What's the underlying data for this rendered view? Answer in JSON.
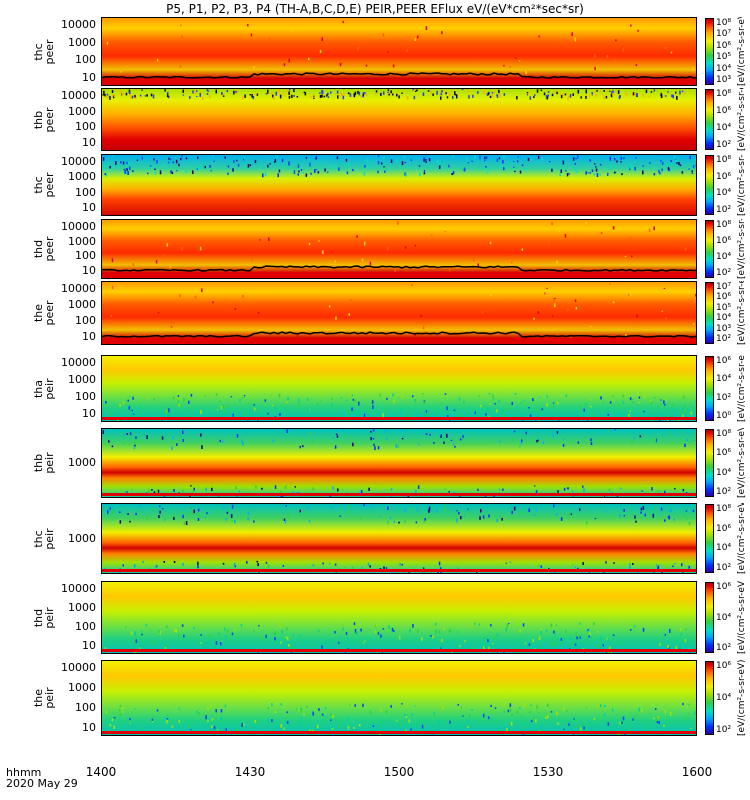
{
  "title": "P5, P1, P2, P3, P4 (TH-A,B,C,D,E) PEIR,PEER EFlux eV/(eV*cm²*sec*sr)",
  "colorbar_units": "[eV/(cm²-s-sr-eV)] (4)",
  "xaxis": {
    "label_line1": "hhmm",
    "label_line2": "2020 May 29",
    "ticks": [
      "1400",
      "1430",
      "1500",
      "1530",
      "1600"
    ]
  },
  "chart_data": {
    "type": "heatmap",
    "x": {
      "units": "hhmm",
      "range": [
        "1400",
        "1600"
      ],
      "ticks": [
        "1400",
        "1430",
        "1500",
        "1530",
        "1600"
      ]
    },
    "colormap": "rainbow",
    "panels": [
      {
        "ylabel": [
          "thc",
          "peer"
        ],
        "yscale": "log",
        "yticks": [
          "10000",
          "1000",
          "100",
          "10"
        ],
        "cticks": [
          "10⁸",
          "10⁷",
          "10⁶",
          "10⁵",
          "10⁴",
          "10³"
        ],
        "kind": "peer-hot"
      },
      {
        "ylabel": [
          "thb",
          "peer"
        ],
        "yscale": "log",
        "yticks": [
          "10000",
          "1000",
          "100",
          "10"
        ],
        "cticks": [
          "10⁸",
          "10⁶",
          "10⁴",
          "10²"
        ],
        "kind": "peer-flat"
      },
      {
        "ylabel": [
          "thc",
          "peer"
        ],
        "yscale": "log",
        "yticks": [
          "10000",
          "1000",
          "100",
          "10"
        ],
        "cticks": [
          "10⁸",
          "10⁶",
          "10⁴",
          "10²"
        ],
        "kind": "peer-noisy"
      },
      {
        "ylabel": [
          "thd",
          "peer"
        ],
        "yscale": "log",
        "yticks": [
          "10000",
          "1000",
          "100",
          "10"
        ],
        "cticks": [
          "10⁸",
          "10⁶",
          "10⁴",
          "10²"
        ],
        "kind": "peer-hot"
      },
      {
        "ylabel": [
          "the",
          "peer"
        ],
        "yscale": "log",
        "yticks": [
          "10000",
          "1000",
          "100",
          "10"
        ],
        "cticks": [
          "10⁷",
          "10⁶",
          "10⁵",
          "10⁴",
          "10³",
          "10²"
        ],
        "kind": "peer-hot"
      },
      {
        "ylabel": [
          "tha",
          "peir"
        ],
        "yscale": "log",
        "yticks": [
          "10000",
          "1000",
          "100",
          "10"
        ],
        "cticks": [
          "10⁶",
          "10⁴",
          "10²",
          "10⁰"
        ],
        "kind": "peir"
      },
      {
        "ylabel": [
          "thb",
          "peir"
        ],
        "yscale": "log",
        "yticks": [
          "1000"
        ],
        "cticks": [
          "10⁸",
          "10⁶",
          "10⁴",
          "10²"
        ],
        "kind": "peir-band"
      },
      {
        "ylabel": [
          "thc",
          "peir"
        ],
        "yscale": "log",
        "yticks": [
          "1000"
        ],
        "cticks": [
          "10⁸",
          "10⁶",
          "10⁴",
          "10²"
        ],
        "kind": "peir-band"
      },
      {
        "ylabel": [
          "thd",
          "peir"
        ],
        "yscale": "log",
        "yticks": [
          "10000",
          "1000",
          "100",
          "10"
        ],
        "cticks": [
          "10⁶",
          "10⁴",
          "10²"
        ],
        "kind": "peir"
      },
      {
        "ylabel": [
          "the",
          "peir"
        ],
        "yscale": "log",
        "yticks": [
          "10000",
          "1000",
          "100",
          "10"
        ],
        "cticks": [
          "10⁶",
          "10⁴",
          "10²"
        ],
        "kind": "peir"
      }
    ]
  }
}
